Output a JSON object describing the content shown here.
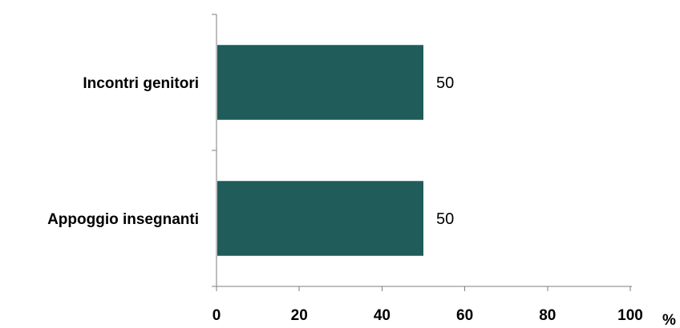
{
  "chart_data": {
    "type": "bar",
    "orientation": "horizontal",
    "categories": [
      "Incontri genitori",
      "Appoggio insegnanti"
    ],
    "values": [
      50,
      50
    ],
    "data_labels": [
      "50",
      "50"
    ],
    "x_ticks": [
      "0",
      "20",
      "40",
      "60",
      "80",
      "100"
    ],
    "x_unit": "%",
    "xlim": [
      0,
      100
    ],
    "grid": false,
    "bar_color": "#1f5c5a"
  }
}
